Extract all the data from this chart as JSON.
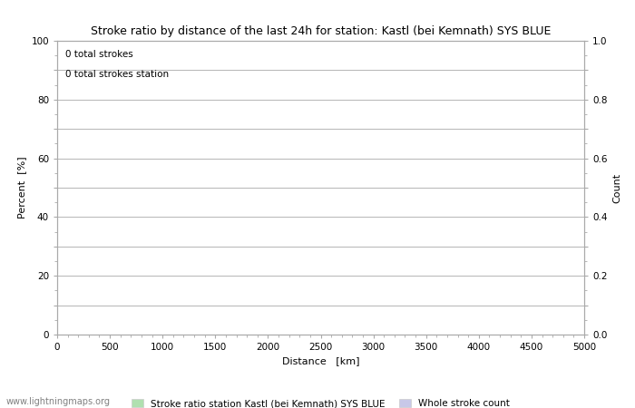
{
  "title": "Stroke ratio by distance of the last 24h for station: Kastl (bei Kemnath) SYS BLUE",
  "annotation_line1": "0 total strokes",
  "annotation_line2": "0 total strokes station",
  "xlabel": "Distance   [km]",
  "ylabel_left": "Percent  [%]",
  "ylabel_right": "Count",
  "xlim": [
    0,
    5000
  ],
  "ylim_left": [
    0,
    100
  ],
  "ylim_right": [
    0.0,
    1.0
  ],
  "xticks": [
    0,
    500,
    1000,
    1500,
    2000,
    2500,
    3000,
    3500,
    4000,
    4500,
    5000
  ],
  "yticks_left": [
    0,
    10,
    20,
    30,
    40,
    50,
    60,
    70,
    80,
    90,
    100
  ],
  "yticks_right": [
    0.0,
    0.1,
    0.2,
    0.3,
    0.4,
    0.5,
    0.6,
    0.7,
    0.8,
    0.9,
    1.0
  ],
  "ytick_labels_left": [
    "0",
    "",
    "20",
    "",
    "40",
    "",
    "60",
    "",
    "80",
    "",
    "100"
  ],
  "ytick_labels_right": [
    "0.0",
    "",
    "0.2",
    "",
    "0.4",
    "",
    "0.6",
    "",
    "0.8",
    "",
    "1.0"
  ],
  "grid_color": "#aaaaaa",
  "background_color": "#ffffff",
  "legend_label1": "Stroke ratio station Kastl (bei Kemnath) SYS BLUE",
  "legend_label2": "Whole stroke count",
  "legend_color1": "#b0e0b0",
  "legend_color2": "#c8c8e8",
  "title_fontsize": 9,
  "axis_label_fontsize": 8,
  "tick_fontsize": 7.5,
  "annotation_fontsize": 7.5,
  "watermark": "www.lightningmaps.org",
  "watermark_fontsize": 7
}
